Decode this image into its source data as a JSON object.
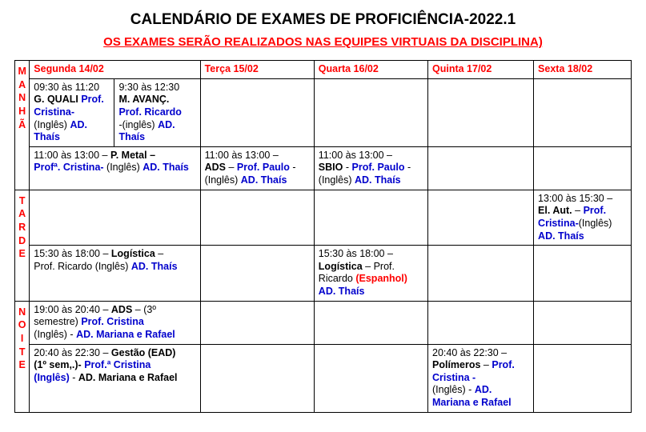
{
  "colors": {
    "accent_red": "#ff0000",
    "accent_blue": "#0000cc",
    "text": "#000000",
    "background": "#ffffff",
    "border": "#000000"
  },
  "typography": {
    "title_fontsize": 19,
    "subtitle_fontsize": 15,
    "cell_fontsize": 12.5,
    "font_family": "Arial"
  },
  "title": "CALENDÁRIO DE EXAMES DE PROFICIÊNCIA-2022.1",
  "subtitle": "OS EXAMES SERÃO REALIZADOS NAS EQUIPES VIRTUAIS DA DISCIPLINA)",
  "days": {
    "seg": "Segunda 14/02",
    "ter": "Terça 15/02",
    "qua": "Quarta 16/02",
    "qui": "Quinta 17/02",
    "sex": "Sexta 18/02"
  },
  "periods": {
    "manha": "MANHÃ",
    "tarde": "TARDE",
    "noite": "NOITE"
  },
  "manha": {
    "row1": {
      "seg_a": {
        "time": "09:30 às 11:20",
        "course": "G. QUALI",
        "prof_lbl": "Prof. Cristina",
        "dash": "-",
        "lang": "(Inglês)",
        "ad": "AD. Thaís"
      },
      "seg_b": {
        "time": "9:30 às 12:30",
        "course": "M. AVANÇ.",
        "prof_lbl": "Prof. Ricardo",
        "dash": "-(inglês)",
        "ad": "AD. Thaís"
      }
    },
    "row2": {
      "seg": {
        "time": "11:00 às 13:00 –",
        "course": "P. Metal –",
        "prof": "Profª. Cristina-",
        "lang": "(Inglês)",
        "ad": "AD. Thaís"
      },
      "ter": {
        "time": "11:00 às 13:00 –",
        "course": "ADS",
        "dash1": "–",
        "prof": "Prof. Paulo",
        "dash2": "-",
        "lang": "(Inglês)",
        "ad": "AD. Thaís"
      },
      "qua": {
        "time": "11:00 às 13:00 –",
        "course": "SBIO",
        "dash1": "-",
        "prof": "Prof. Paulo",
        "dash2": "-",
        "lang": "(Inglês)",
        "ad": "AD. Thaís"
      }
    }
  },
  "tarde": {
    "row1": {
      "sex": {
        "time": "13:00 às 15:30 –",
        "course": "El. Aut.",
        "dash": "–",
        "prof": "Prof. Cristina-",
        "lang": "(Inglês)",
        "ad": "AD. Thaís"
      }
    },
    "row2": {
      "seg": {
        "time": "15:30 às 18:00 –",
        "course": "Logística",
        "dash": "–",
        "prof_line": "Prof. Ricardo (Inglês)",
        "ad": "AD. Thaís"
      },
      "qua": {
        "time": "15:30 às 18:00 –",
        "course": "Logística",
        "dash": "– Prof.",
        "prof_line2": "Ricardo",
        "lang": "(Espanhol)",
        "ad": "AD. Thaís"
      }
    }
  },
  "noite": {
    "row1": {
      "seg": {
        "time": "19:00 às 20:40 –",
        "course": "ADS",
        "extra": "– (3º",
        "line2a": "semestre)",
        "prof": "Prof.  Cristina",
        "lang": "(Inglês) -",
        "ad": "AD. Mariana e Rafael"
      }
    },
    "row2": {
      "seg": {
        "time": "20:40 às 22:30 –",
        "course": "Gestão (EAD)",
        "line2": "(1º sem,.)-",
        "prof": "Prof.ª Cristina",
        "lang": "(Inglês)",
        "dash": "-",
        "ad": "AD. Mariana e Rafael"
      },
      "qui": {
        "time": "20:40 às 22:30 –",
        "course": "Polímeros",
        "dash1": "–",
        "prof": "Prof. Cristina",
        "dash2": "-",
        "lang": "(Inglês) -",
        "ad": "AD. Mariana e Rafael"
      }
    }
  }
}
